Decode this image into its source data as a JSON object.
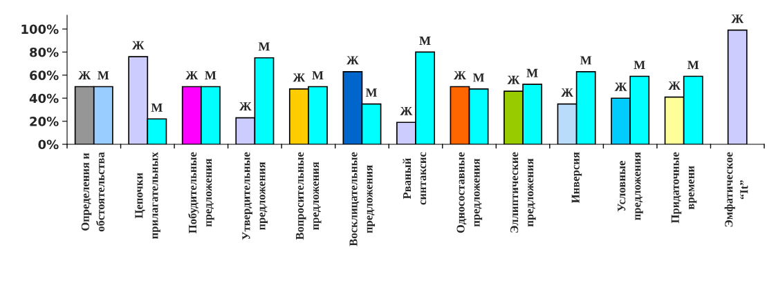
{
  "chart_data": {
    "type": "bar",
    "categories": [
      "Определения и\nобстоятельства",
      "Цепочки\nприлагательных",
      "Побудительные\nпредложения",
      "Утвердительные\nпредложения",
      "Вопросительные\nпредложения",
      "Восклицательные\nпредложения",
      "Рваный\nсинтаксис",
      "Односоставные\nпредложения",
      "Эллиптические\nпредложения",
      "Инверсия",
      "Условные\nпредложения",
      "Придаточные\nвремени",
      "Эмфатическое\n“It”"
    ],
    "series": [
      {
        "name": "Ж",
        "colors": [
          "#969696",
          "#ccccff",
          "#ff00ff",
          "#ccccff",
          "#ffcc00",
          "#0066cc",
          "#ccccff",
          "#ff6600",
          "#99cc00",
          "#b8dcfa",
          "#00ccff",
          "#ffff99",
          "#ccccff"
        ],
        "values": [
          50,
          76,
          50,
          23,
          48,
          63,
          19,
          50,
          46,
          35,
          40,
          41,
          99
        ]
      },
      {
        "name": "М",
        "colors": [
          "#99ccff",
          "#00ffff",
          "#00ffff",
          "#00ffff",
          "#00ffff",
          "#00ffff",
          "#00ffff",
          "#00ffff",
          "#00ffff",
          "#00ffff",
          "#00ffff",
          "#00ffff",
          null
        ],
        "values": [
          50,
          22,
          50,
          75,
          50,
          35,
          80,
          48,
          52,
          63,
          59,
          59,
          null
        ]
      }
    ],
    "ylim": [
      0,
      112
    ],
    "yticks": [
      {
        "value": 0,
        "label": "0%"
      },
      {
        "value": 20,
        "label": "20%"
      },
      {
        "value": 40,
        "label": "40%"
      },
      {
        "value": 60,
        "label": "60%"
      },
      {
        "value": 80,
        "label": "80%"
      },
      {
        "value": 100,
        "label": "100%"
      }
    ],
    "grid": false,
    "legend": false
  }
}
